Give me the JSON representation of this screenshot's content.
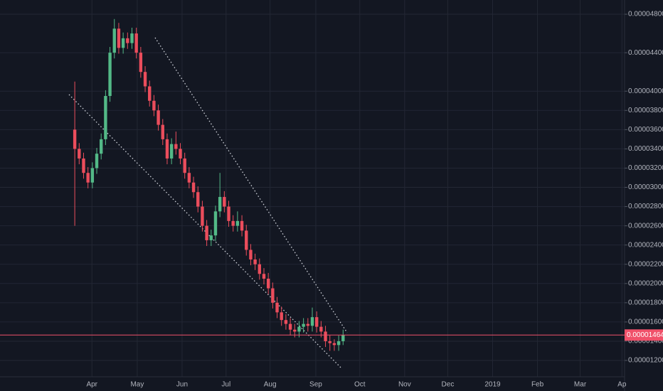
{
  "chart_data": {
    "type": "candlestick",
    "series": [
      {
        "up_color": "#53b987",
        "down_color": "#eb4d5c",
        "open": [
          3.6e-05,
          3.4e-05,
          3.3e-05,
          3.15e-05,
          3.05e-05,
          3.2e-05,
          3.35e-05,
          3.5e-05,
          3.95e-05,
          4.4e-05,
          4.65e-05,
          4.45e-05,
          4.55e-05,
          4.5e-05,
          4.6e-05,
          4.4e-05,
          4.2e-05,
          4.05e-05,
          3.9e-05,
          3.8e-05,
          3.65e-05,
          3.5e-05,
          3.3e-05,
          3.45e-05,
          3.4e-05,
          3.3e-05,
          3.15e-05,
          3.05e-05,
          2.95e-05,
          2.8e-05,
          2.6e-05,
          2.45e-05,
          2.5e-05,
          2.75e-05,
          2.9e-05,
          2.8e-05,
          2.65e-05,
          2.6e-05,
          2.65e-05,
          2.55e-05,
          2.35e-05,
          2.25e-05,
          2.2e-05,
          2.1e-05,
          2.05e-05,
          1.95e-05,
          1.8e-05,
          1.7e-05,
          1.62e-05,
          1.58e-05,
          1.52e-05,
          1.5e-05,
          1.55e-05,
          1.58e-05,
          1.56e-05,
          1.65e-05,
          1.55e-05,
          1.5e-05,
          1.4e-05,
          1.38e-05,
          1.36e-05,
          1.4e-05
        ],
        "high": [
          4.1e-05,
          3.46e-05,
          3.36e-05,
          3.21e-05,
          3.26e-05,
          3.41e-05,
          3.56e-05,
          4.01e-05,
          4.46e-05,
          4.75e-05,
          4.71e-05,
          4.61e-05,
          4.61e-05,
          4.66e-05,
          4.66e-05,
          4.46e-05,
          4.26e-05,
          4.11e-05,
          3.96e-05,
          3.86e-05,
          3.71e-05,
          3.56e-05,
          3.51e-05,
          3.58e-05,
          3.46e-05,
          3.36e-05,
          3.21e-05,
          3.11e-05,
          3.01e-05,
          2.86e-05,
          2.66e-05,
          2.56e-05,
          2.81e-05,
          3.15e-05,
          2.96e-05,
          2.86e-05,
          2.71e-05,
          2.75e-05,
          2.71e-05,
          2.61e-05,
          2.41e-05,
          2.31e-05,
          2.26e-05,
          2.16e-05,
          2.11e-05,
          2.01e-05,
          1.86e-05,
          1.76e-05,
          1.68e-05,
          1.64e-05,
          1.58e-05,
          1.61e-05,
          1.64e-05,
          1.64e-05,
          1.75e-05,
          1.71e-05,
          1.61e-05,
          1.56e-05,
          1.46e-05,
          1.42e-05,
          1.46e-05,
          1.52e-05
        ],
        "low": [
          2.6e-05,
          3.24e-05,
          3.09e-05,
          2.99e-05,
          2.99e-05,
          3.14e-05,
          3.29e-05,
          3.44e-05,
          3.89e-05,
          4.34e-05,
          4.39e-05,
          4.39e-05,
          4.44e-05,
          4.44e-05,
          4.34e-05,
          4.14e-05,
          3.99e-05,
          3.84e-05,
          3.74e-05,
          3.59e-05,
          3.44e-05,
          3.24e-05,
          3.24e-05,
          3.34e-05,
          3.24e-05,
          3.09e-05,
          2.99e-05,
          2.89e-05,
          2.74e-05,
          2.54e-05,
          2.39e-05,
          2.39e-05,
          2.44e-05,
          2.69e-05,
          2.74e-05,
          2.59e-05,
          2.54e-05,
          2.54e-05,
          2.49e-05,
          2.29e-05,
          2.19e-05,
          2.14e-05,
          2.04e-05,
          1.99e-05,
          1.89e-05,
          1.74e-05,
          1.64e-05,
          1.56e-05,
          1.52e-05,
          1.46e-05,
          1.44e-05,
          1.44e-05,
          1.49e-05,
          1.5e-05,
          1.5e-05,
          1.49e-05,
          1.44e-05,
          1.34e-05,
          1.3e-05,
          1.3e-05,
          1.3e-05,
          1.36e-05
        ],
        "close": [
          3.4e-05,
          3.3e-05,
          3.15e-05,
          3.05e-05,
          3.2e-05,
          3.35e-05,
          3.5e-05,
          3.95e-05,
          4.4e-05,
          4.65e-05,
          4.45e-05,
          4.55e-05,
          4.5e-05,
          4.6e-05,
          4.4e-05,
          4.2e-05,
          4.05e-05,
          3.9e-05,
          3.8e-05,
          3.65e-05,
          3.5e-05,
          3.3e-05,
          3.45e-05,
          3.4e-05,
          3.3e-05,
          3.15e-05,
          3.05e-05,
          2.95e-05,
          2.8e-05,
          2.6e-05,
          2.45e-05,
          2.5e-05,
          2.75e-05,
          2.9e-05,
          2.8e-05,
          2.65e-05,
          2.6e-05,
          2.65e-05,
          2.55e-05,
          2.35e-05,
          2.25e-05,
          2.2e-05,
          2.1e-05,
          2.05e-05,
          1.95e-05,
          1.8e-05,
          1.7e-05,
          1.62e-05,
          1.58e-05,
          1.52e-05,
          1.5e-05,
          1.55e-05,
          1.58e-05,
          1.56e-05,
          1.65e-05,
          1.55e-05,
          1.5e-05,
          1.4e-05,
          1.38e-05,
          1.36e-05,
          1.4e-05,
          1.464e-05
        ]
      }
    ],
    "xlim": [
      -17,
      125
    ],
    "xticks": [
      {
        "value": 3.9,
        "label": "Apr"
      },
      {
        "value": 14.2,
        "label": "May"
      },
      {
        "value": 24.4,
        "label": "Jun"
      },
      {
        "value": 34.4,
        "label": "Jul"
      },
      {
        "value": 44.4,
        "label": "Aug"
      },
      {
        "value": 54.8,
        "label": "Sep"
      },
      {
        "value": 64.8,
        "label": "Oct"
      },
      {
        "value": 75,
        "label": "Nov"
      },
      {
        "value": 84.8,
        "label": "Dec"
      },
      {
        "value": 95,
        "label": "2019"
      },
      {
        "value": 105.2,
        "label": "Feb"
      },
      {
        "value": 114.9,
        "label": "Mar"
      },
      {
        "value": 124.4,
        "label": "Ap"
      }
    ],
    "ylim": [
      1.03e-05,
      4.948e-05
    ],
    "yticks": [
      {
        "value": 4.8e-05,
        "label": "0.00004800"
      },
      {
        "value": 4.4e-05,
        "label": "0.00004400"
      },
      {
        "value": 4e-05,
        "label": "0.00004000"
      },
      {
        "value": 3.8e-05,
        "label": "0.00003800"
      },
      {
        "value": 3.6e-05,
        "label": "0.00003600"
      },
      {
        "value": 3.4e-05,
        "label": "0.00003400"
      },
      {
        "value": 3.2e-05,
        "label": "0.00003200"
      },
      {
        "value": 3e-05,
        "label": "0.00003000"
      },
      {
        "value": 2.8e-05,
        "label": "0.00002800"
      },
      {
        "value": 2.6e-05,
        "label": "0.00002600"
      },
      {
        "value": 2.4e-05,
        "label": "0.00002400"
      },
      {
        "value": 2.2e-05,
        "label": "0.00002200"
      },
      {
        "value": 2e-05,
        "label": "0.00002000"
      },
      {
        "value": 1.8e-05,
        "label": "0.00001800"
      },
      {
        "value": 1.6e-05,
        "label": "0.00001600"
      },
      {
        "value": 1.4e-05,
        "label": "0.00001400"
      },
      {
        "value": 1.2e-05,
        "label": "0.00001200"
      }
    ],
    "price_line": {
      "value": 1.464e-05,
      "label": "0.00001464",
      "color": "#f0516a"
    },
    "grid": true
  }
}
